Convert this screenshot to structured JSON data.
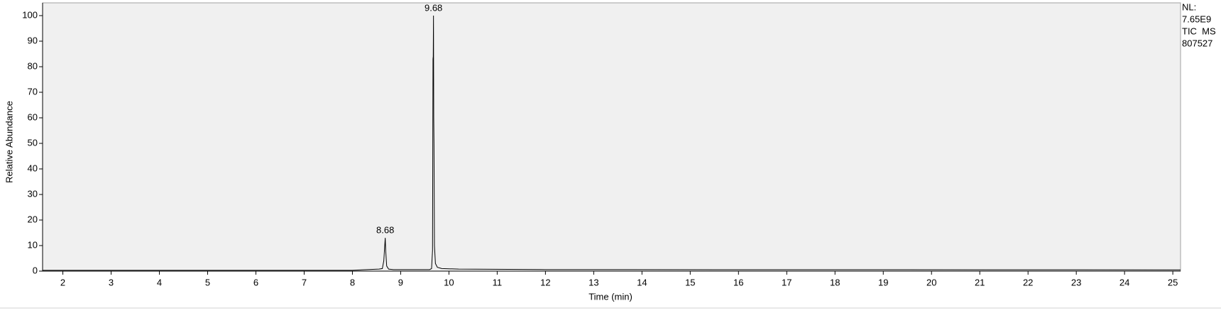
{
  "chart_data": {
    "type": "line",
    "x_label": "Time (min)",
    "y_label": "Relative Abundance",
    "x": [
      1.58,
      8.0,
      8.3,
      8.55,
      8.62,
      8.65,
      8.67,
      8.68,
      8.69,
      8.71,
      8.75,
      8.85,
      9.6,
      9.64,
      9.66,
      9.67,
      9.675,
      9.68,
      9.685,
      9.69,
      9.7,
      9.72,
      9.76,
      9.85,
      10.2,
      12.0,
      25.16
    ],
    "values": [
      0.3,
      0.3,
      0.6,
      0.8,
      1.0,
      4.0,
      10.0,
      13.0,
      8.0,
      2.0,
      0.8,
      0.6,
      0.6,
      1.0,
      8.0,
      83.0,
      84.0,
      100.0,
      60.0,
      50.0,
      10.0,
      3.0,
      1.5,
      1.0,
      0.8,
      0.6,
      0.5
    ],
    "color": "#000000",
    "xlim": [
      1.58,
      25.16
    ],
    "ylim": [
      0,
      100
    ],
    "xticks": [
      2,
      3,
      4,
      5,
      6,
      7,
      8,
      9,
      10,
      11,
      12,
      13,
      14,
      15,
      16,
      17,
      18,
      19,
      20,
      21,
      22,
      23,
      24,
      25
    ],
    "yticks": [
      0,
      10,
      20,
      30,
      40,
      50,
      60,
      70,
      80,
      90,
      100
    ],
    "peak_labels": [
      {
        "x": 8.68,
        "y": 13
      },
      {
        "x": 9.68,
        "y": 100
      }
    ],
    "info": [
      "NL:",
      "7.65E9",
      "TIC  MS",
      "807527"
    ]
  }
}
